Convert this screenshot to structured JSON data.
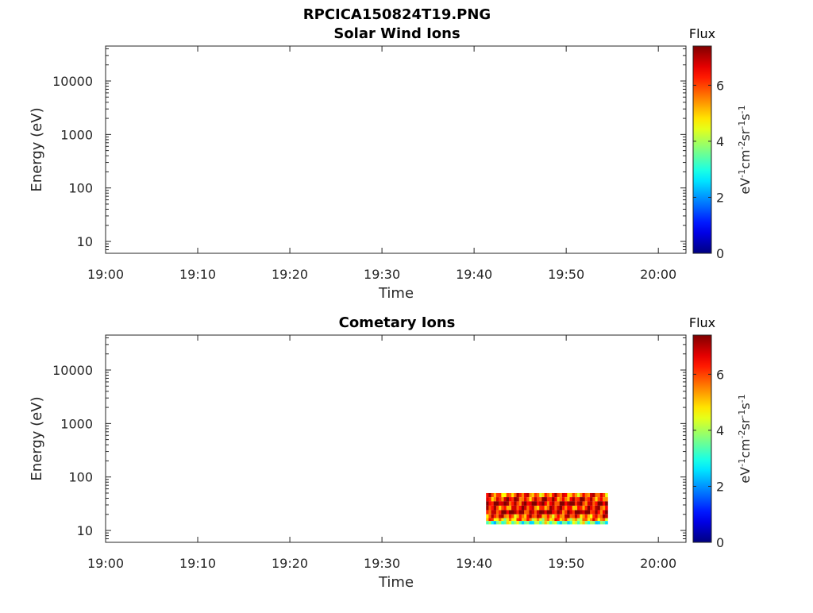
{
  "figure": {
    "title": "RPCICA150824T19.PNG"
  },
  "chart_data": [
    {
      "type": "heatmap",
      "title": "Solar Wind Ions",
      "xlabel": "Time",
      "ylabel": "Energy (eV)",
      "x_ticks": [
        "19:00",
        "19:10",
        "19:20",
        "19:30",
        "19:40",
        "19:50",
        "20:00"
      ],
      "x_range_minutes_after_19_00": [
        0,
        63
      ],
      "y_ticks": [
        "10",
        "100",
        "1000",
        "10000"
      ],
      "y_scale": "log",
      "y_range_eV": [
        6,
        45000
      ],
      "colorbar": {
        "title": "Flux",
        "label_parts": [
          "eV",
          "-1",
          "cm",
          "-2",
          "sr",
          "-1",
          "s",
          "-1"
        ],
        "ticks": [
          "0",
          "2",
          "4",
          "6"
        ],
        "range": [
          0,
          7.4
        ],
        "colormap": "jet"
      },
      "data": []
    },
    {
      "type": "heatmap",
      "title": "Cometary Ions",
      "xlabel": "Time",
      "ylabel": "Energy (eV)",
      "x_ticks": [
        "19:00",
        "19:10",
        "19:20",
        "19:30",
        "19:40",
        "19:50",
        "20:00"
      ],
      "x_range_minutes_after_19_00": [
        0,
        63
      ],
      "y_ticks": [
        "10",
        "100",
        "1000",
        "10000"
      ],
      "y_scale": "log",
      "y_range_eV": [
        6,
        45000
      ],
      "colorbar": {
        "title": "Flux",
        "label_parts": [
          "eV",
          "-1",
          "cm",
          "-2",
          "sr",
          "-1",
          "s",
          "-1"
        ],
        "ticks": [
          "0",
          "2",
          "4",
          "6"
        ],
        "range": [
          0,
          7.4
        ],
        "colormap": "jet"
      },
      "data": {
        "time_start_minutes": 41.3,
        "time_end_minutes": 54.5,
        "time_bins": 48,
        "energy_bins_eV": [
          {
            "low": 42,
            "high": 50,
            "flux": 5.8
          },
          {
            "low": 35,
            "high": 42,
            "flux": 6.3
          },
          {
            "low": 29,
            "high": 35,
            "flux": 6.8
          },
          {
            "low": 24,
            "high": 29,
            "flux": 6.2
          },
          {
            "low": 20,
            "high": 24,
            "flux": 6.9
          },
          {
            "low": 17,
            "high": 20,
            "flux": 5.9
          },
          {
            "low": 15,
            "high": 17,
            "flux": 5.2
          },
          {
            "low": 13,
            "high": 15,
            "flux": 3.6
          }
        ]
      }
    }
  ]
}
